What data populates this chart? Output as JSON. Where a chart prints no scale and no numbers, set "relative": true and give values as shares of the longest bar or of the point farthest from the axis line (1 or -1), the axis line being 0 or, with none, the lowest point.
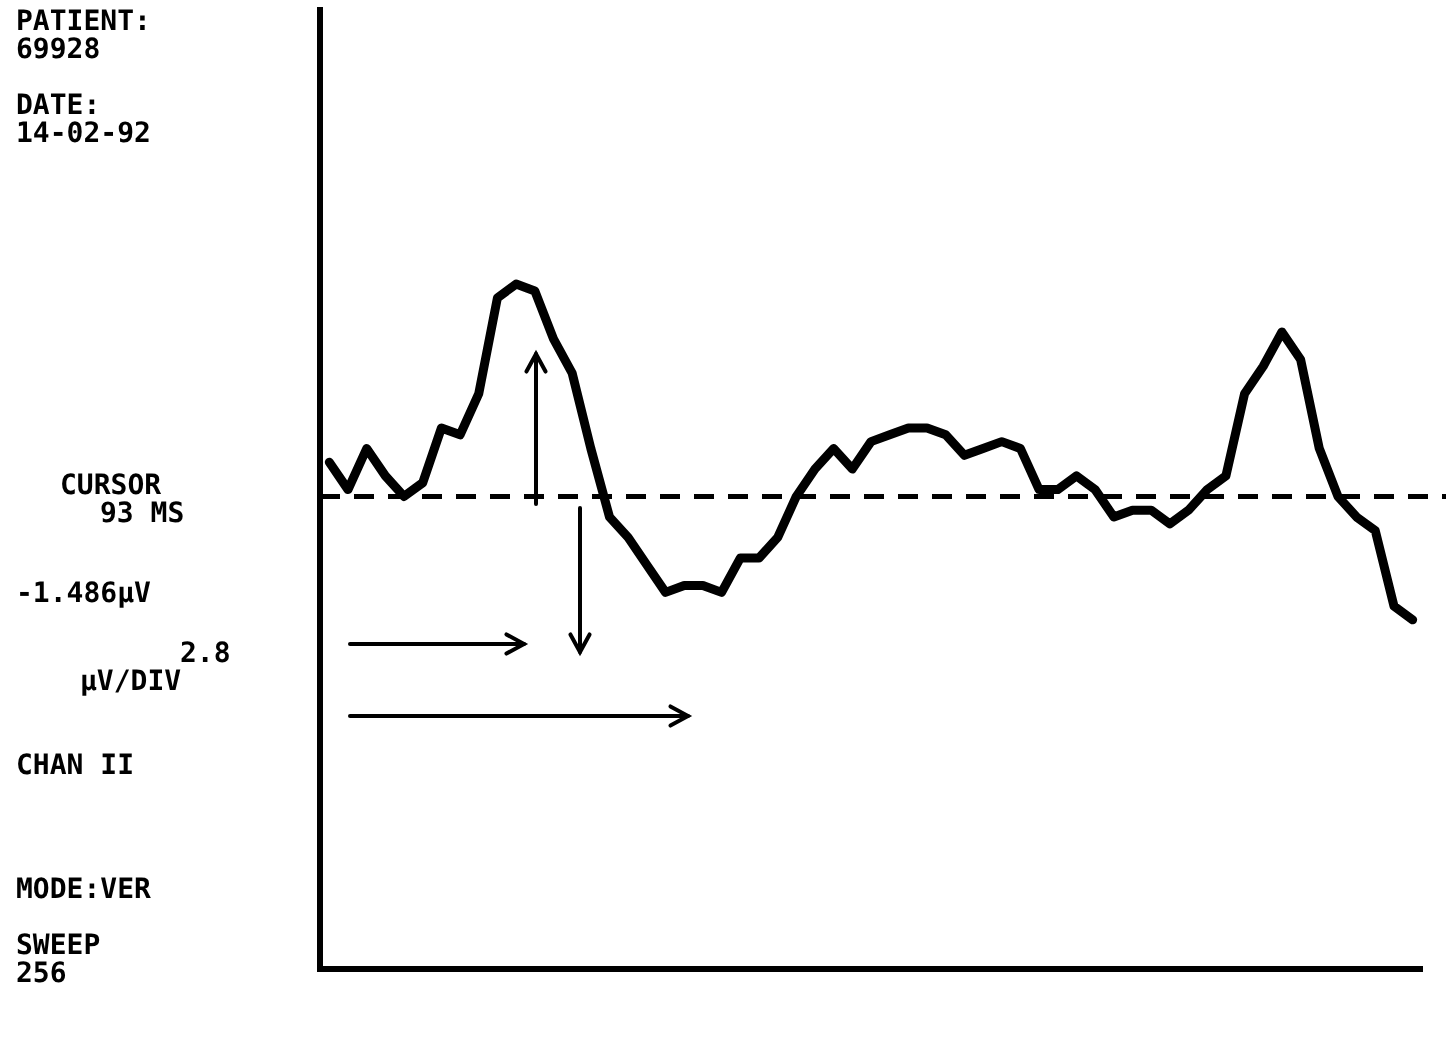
{
  "chart_data": {
    "type": "line",
    "relative": true,
    "marker": "none",
    "line_style": "solid",
    "grid": false,
    "legend": false,
    "categories": [
      null,
      null,
      null,
      null,
      null,
      null,
      null,
      null,
      null,
      null,
      null,
      null,
      null,
      null,
      null,
      null,
      null,
      null,
      null,
      null,
      null,
      null,
      null,
      null,
      null,
      null,
      null,
      null,
      null,
      null,
      null,
      null,
      null,
      null,
      null,
      null,
      null,
      null,
      null,
      null,
      null,
      null,
      null,
      null,
      null,
      null,
      null,
      null,
      null,
      null,
      null,
      null,
      null,
      null,
      null,
      null,
      null,
      null,
      null
    ],
    "series": [
      {
        "color": "#000000",
        "values": [
          0.74,
          0.7,
          0.76,
          0.72,
          0.69,
          0.71,
          0.79,
          0.78,
          0.84,
          0.98,
          1,
          0.99,
          0.92,
          0.87,
          0.76,
          0.66,
          0.63,
          0.59,
          0.55,
          0.56,
          0.56,
          0.55,
          0.6,
          0.6,
          0.63,
          0.69,
          0.73,
          0.76,
          0.73,
          0.77,
          0.78,
          0.79,
          0.79,
          0.78,
          0.75,
          0.76,
          0.77,
          0.76,
          0.7,
          0.7,
          0.72,
          0.7,
          0.66,
          0.67,
          0.67,
          0.65,
          0.67,
          0.7,
          0.72,
          0.84,
          0.88,
          0.93,
          0.89,
          0.76,
          0.69,
          0.66,
          0.64,
          0.53,
          0.51
        ]
      }
    ],
    "ref_lines": [
      {
        "axis": "y",
        "value": 0.69,
        "line_style": "dashed",
        "color": "#000000"
      }
    ],
    "annotations": [
      "PATIENT:",
      "69928",
      "DATE:",
      "14-02-92",
      "CURSOR",
      "93 MS",
      "-1.486µV",
      "2.8",
      "µV/DIV",
      "CHAN II",
      "MODE:VER",
      "SWEEP",
      "256"
    ]
  }
}
